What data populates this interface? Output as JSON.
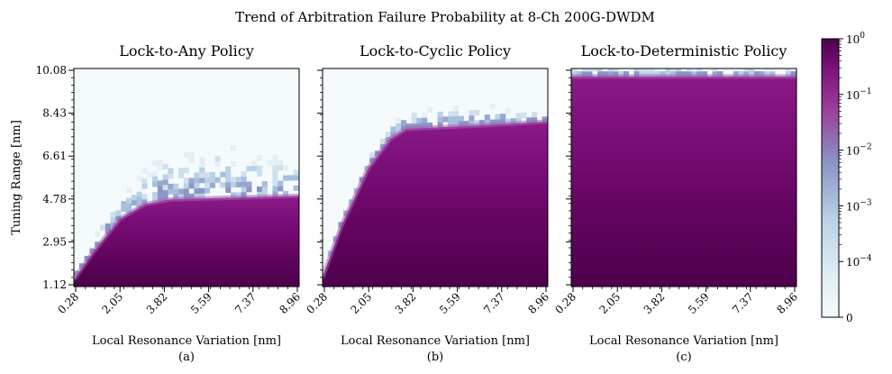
{
  "figure": {
    "title": "Trend of Arbitration Failure Probability at 8-Ch 200G-DWDM"
  },
  "chart_data": [
    {
      "type": "heatmap",
      "title": "Lock-to-Any Policy",
      "caption": "(a)",
      "xlabel": "Local Resonance Variation [nm]",
      "ylabel": "Tuning Range [nm]",
      "xticks": [
        "0.28",
        "2.05",
        "3.82",
        "5.59",
        "7.37",
        "8.96"
      ],
      "yticks": [
        "1.12",
        "2.95",
        "4.78",
        "6.61",
        "8.43",
        "10.08"
      ],
      "xlim": [
        0.28,
        8.96
      ],
      "ylim": [
        1.12,
        10.08
      ],
      "color_scale": "symlog",
      "boundary": {
        "x": [
          0.28,
          1.0,
          2.05,
          3.0,
          4.0,
          5.59,
          7.37,
          8.96
        ],
        "y": [
          1.4,
          2.5,
          3.9,
          4.5,
          4.7,
          4.75,
          4.8,
          4.85
        ]
      },
      "fringe_top": {
        "x": [
          0.28,
          2.05,
          3.0,
          3.82,
          5.59,
          7.37,
          8.96
        ],
        "y": [
          1.5,
          4.8,
          5.6,
          6.2,
          6.6,
          6.4,
          6.0
        ]
      }
    },
    {
      "type": "heatmap",
      "title": "Lock-to-Cyclic Policy",
      "caption": "(b)",
      "xlabel": "Local Resonance Variation [nm]",
      "xticks": [
        "0.28",
        "2.05",
        "3.82",
        "5.59",
        "7.37",
        "8.96"
      ],
      "xlim": [
        0.28,
        8.96
      ],
      "ylim": [
        1.12,
        10.08
      ],
      "color_scale": "symlog",
      "boundary": {
        "x": [
          0.28,
          1.0,
          2.05,
          2.9,
          3.5,
          5.59,
          7.37,
          8.96
        ],
        "y": [
          1.5,
          3.6,
          6.0,
          7.2,
          7.6,
          7.7,
          7.8,
          7.9
        ]
      },
      "fringe_top": {
        "x": [
          0.28,
          2.05,
          2.9,
          3.5,
          5.59,
          7.37,
          8.96
        ],
        "y": [
          1.6,
          6.3,
          7.6,
          8.1,
          8.4,
          8.3,
          8.3
        ]
      }
    },
    {
      "type": "heatmap",
      "title": "Lock-to-Deterministic Policy",
      "caption": "(c)",
      "xlabel": "Local Resonance Variation [nm]",
      "xticks": [
        "0.28",
        "2.05",
        "3.82",
        "5.59",
        "7.37",
        "8.96"
      ],
      "xlim": [
        0.28,
        8.96
      ],
      "ylim": [
        1.12,
        10.08
      ],
      "color_scale": "symlog",
      "boundary": {
        "x": [
          0.28,
          8.96
        ],
        "y": [
          9.75,
          9.75
        ]
      },
      "fringe_top": {
        "x": [
          0.28,
          8.96
        ],
        "y": [
          10.08,
          10.08
        ]
      }
    }
  ],
  "colorbar": {
    "ticks": [
      {
        "base": "10",
        "exp": "0",
        "value": 1
      },
      {
        "base": "10",
        "exp": "−1",
        "value": 0.1
      },
      {
        "base": "10",
        "exp": "−2",
        "value": 0.01
      },
      {
        "base": "10",
        "exp": "−3",
        "value": 0.001
      },
      {
        "base": "10",
        "exp": "−4",
        "value": 0.0001
      },
      {
        "base": "0",
        "exp": "",
        "value": 0
      }
    ],
    "colors": {
      "low": "#f5fbfd",
      "mid1": "#b9d2e6",
      "mid2": "#8c96c6",
      "mid3": "#9b3d9b",
      "high": "#4d004b"
    }
  }
}
